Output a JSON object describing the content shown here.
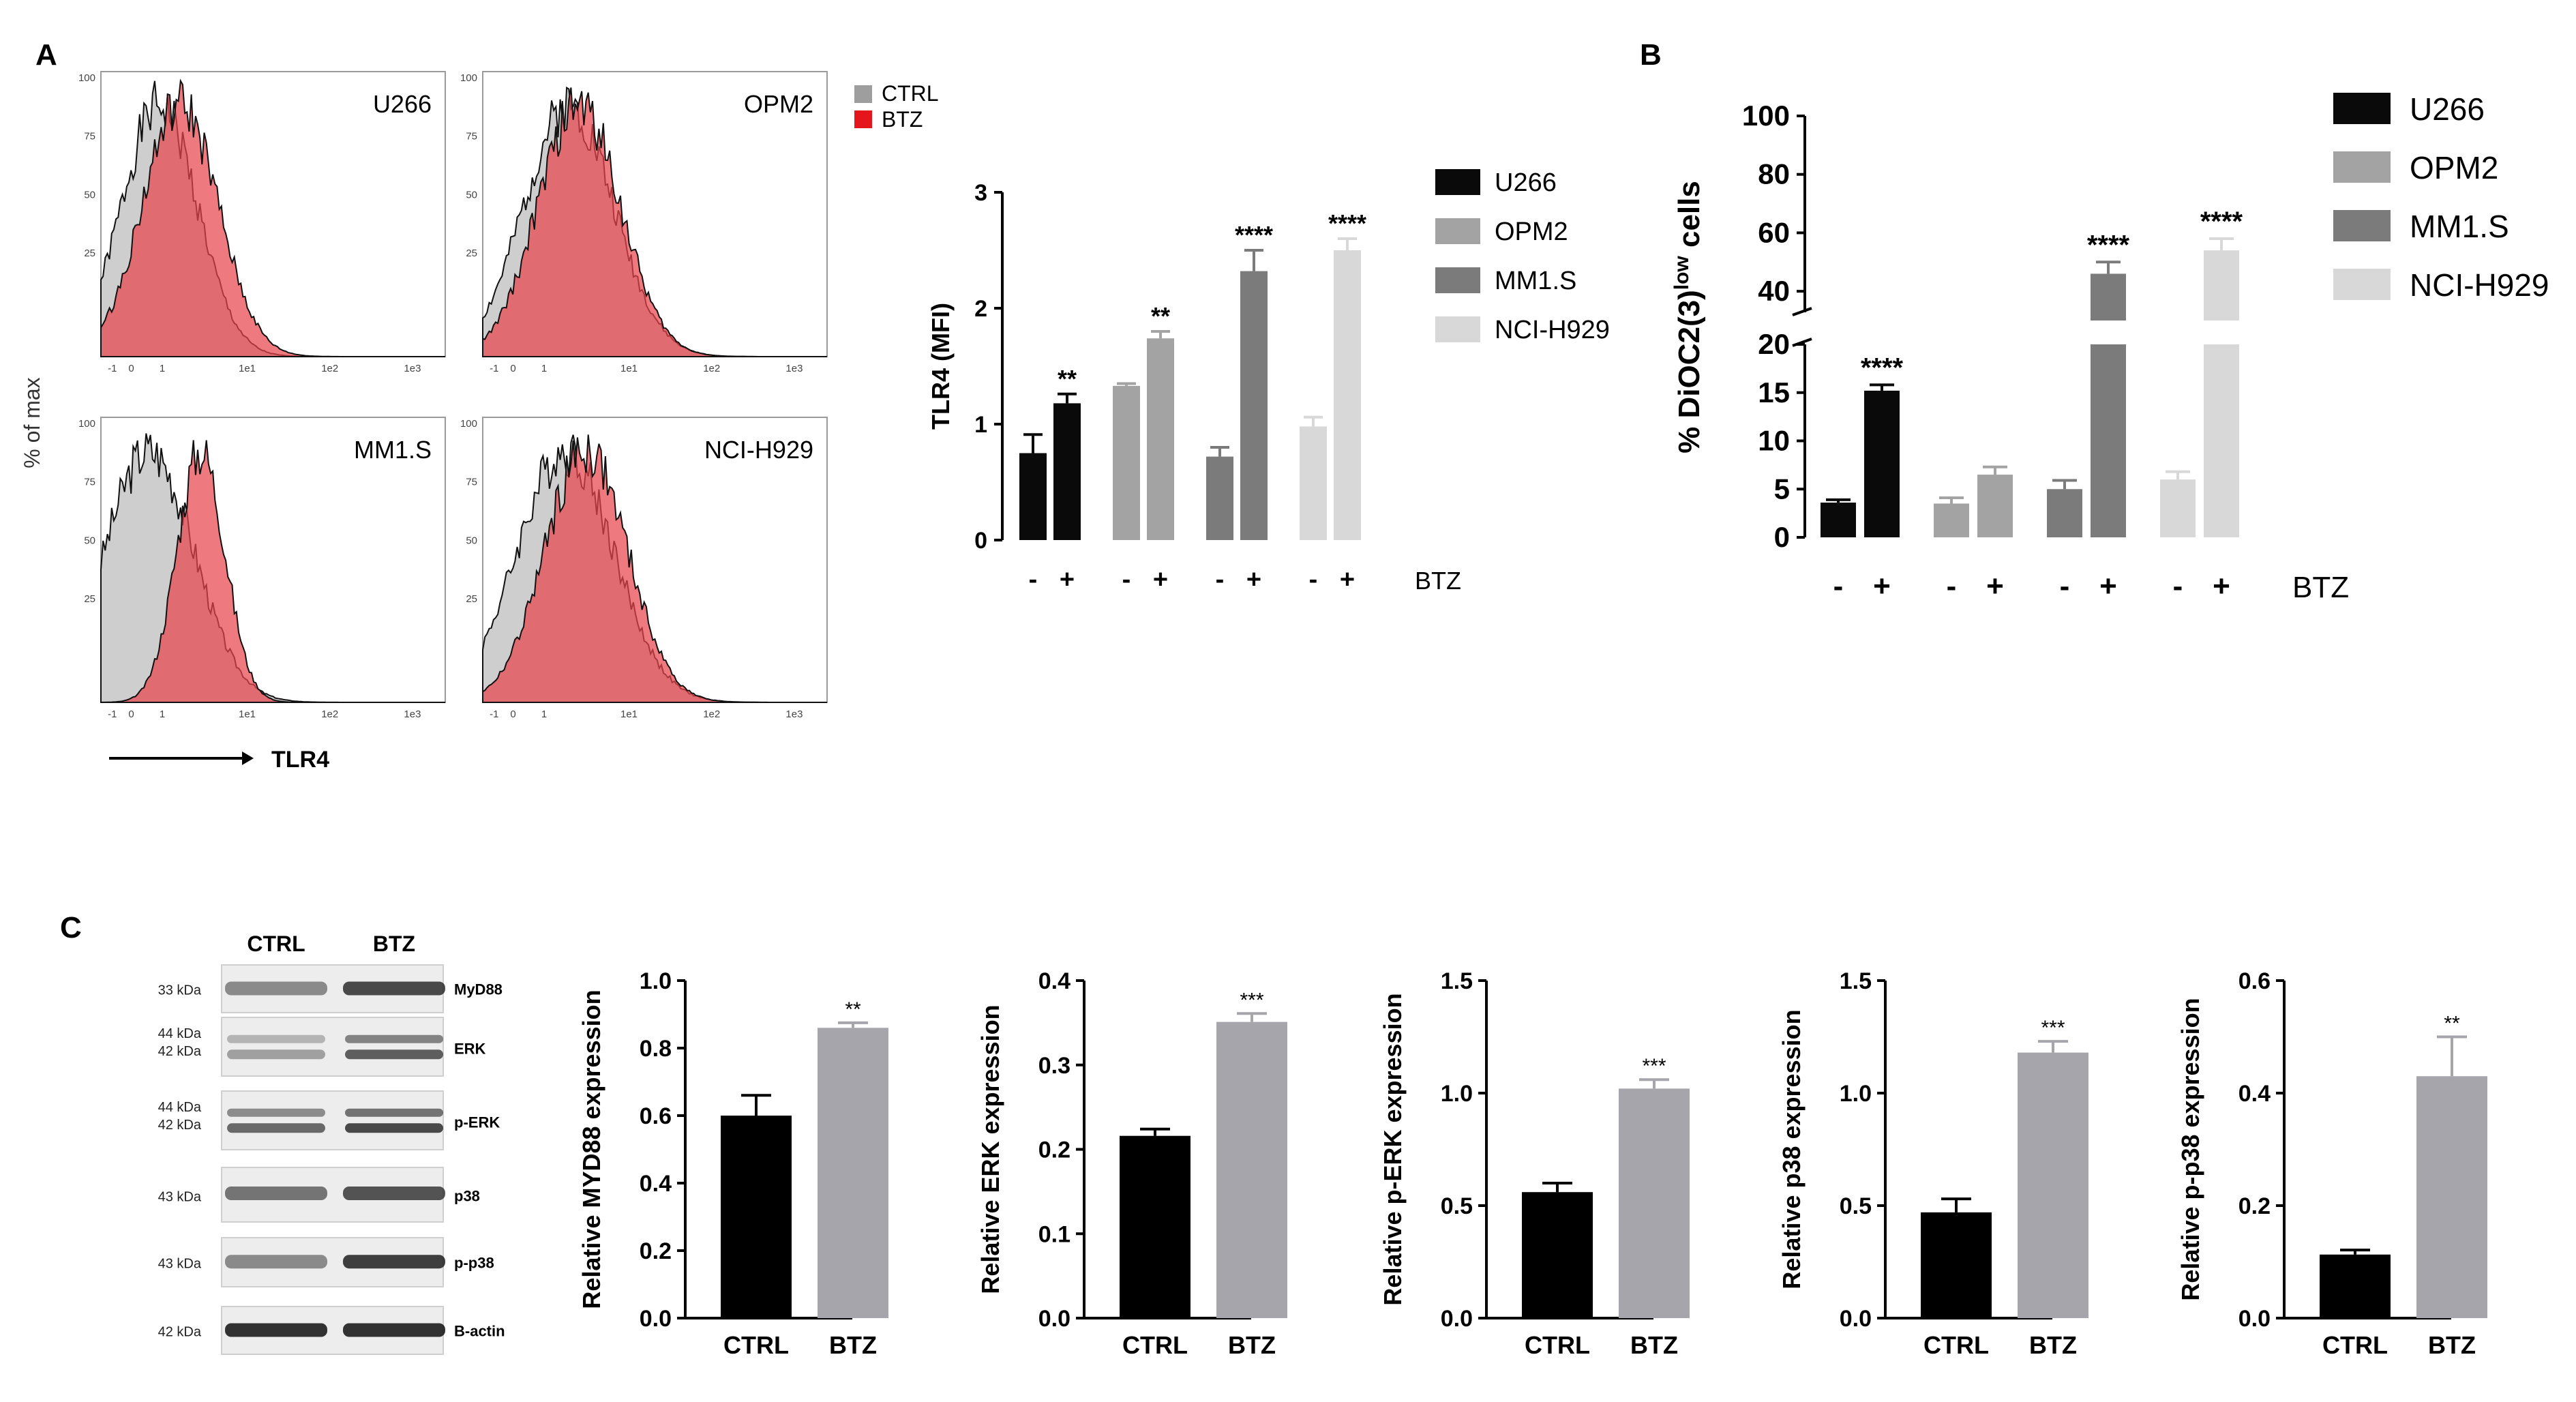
{
  "panel_labels": {
    "a": "A",
    "b": "B",
    "c": "C"
  },
  "histograms": {
    "ylabel": "% of max",
    "xlabel": "TLR4",
    "yticks": [
      "100",
      "75",
      "50",
      "25"
    ],
    "xticks": [
      "-1",
      "0",
      "1",
      "1e1",
      "1e2",
      "1e3"
    ],
    "legend": [
      {
        "label": "CTRL",
        "color": "#9e9e9e"
      },
      {
        "label": "BTZ",
        "color": "#e4161b"
      }
    ],
    "panels": [
      {
        "cell_line": "U266"
      },
      {
        "cell_line": "OPM2"
      },
      {
        "cell_line": "MM1.S"
      },
      {
        "cell_line": "NCI-H929"
      }
    ]
  },
  "colors": {
    "U266": "#0a0a0a",
    "OPM2": "#a3a3a3",
    "MM1.S": "#7b7b7b",
    "NCI-H929": "#d8d8d8",
    "CTRL": "#000000",
    "BTZ": "#a5a5ab",
    "hist_ctrl": "#bdbdbd",
    "hist_btz": "#e8474e"
  },
  "chart_data": [
    {
      "id": "tlr4_mfi",
      "type": "bar",
      "title": "",
      "ylabel": "TLR4 (MFI)",
      "xlabel": "BTZ",
      "ylim": [
        0,
        3
      ],
      "yticks": [
        "0",
        "1",
        "2",
        "3"
      ],
      "treatment_labels": [
        "-",
        "+"
      ],
      "series": [
        {
          "name": "U266",
          "values": [
            0.75,
            1.18
          ],
          "errors": [
            0.16,
            0.08
          ],
          "sig": "**"
        },
        {
          "name": "OPM2",
          "values": [
            1.33,
            1.74
          ],
          "errors": [
            0.02,
            0.06
          ],
          "sig": "**"
        },
        {
          "name": "MM1.S",
          "values": [
            0.72,
            2.32
          ],
          "errors": [
            0.08,
            0.18
          ],
          "sig": "****"
        },
        {
          "name": "NCI-H929",
          "values": [
            0.98,
            2.5
          ],
          "errors": [
            0.08,
            0.1
          ],
          "sig": "****"
        }
      ]
    },
    {
      "id": "dioc2",
      "type": "bar",
      "title": "",
      "ylabel": "% DiOC2(3)",
      "ylabel_sup": "low",
      "ylabel_tail": " cells",
      "xlabel": "BTZ",
      "broken_axis": {
        "lower": [
          0,
          20
        ],
        "upper": [
          30,
          100
        ]
      },
      "yticks": [
        "0",
        "5",
        "10",
        "15",
        "20",
        "40",
        "60",
        "80",
        "100"
      ],
      "treatment_labels": [
        "-",
        "+"
      ],
      "series": [
        {
          "name": "U266",
          "values": [
            3.6,
            15.2
          ],
          "errors": [
            0.3,
            0.6
          ],
          "sig": "****"
        },
        {
          "name": "OPM2",
          "values": [
            3.5,
            6.5
          ],
          "errors": [
            0.6,
            0.8
          ],
          "sig": ""
        },
        {
          "name": "MM1.S",
          "values": [
            5.0,
            46
          ],
          "errors": [
            0.9,
            4
          ],
          "sig": "****"
        },
        {
          "name": "NCI-H929",
          "values": [
            6.0,
            54
          ],
          "errors": [
            0.8,
            4
          ],
          "sig": "****"
        }
      ]
    },
    {
      "id": "myd88",
      "type": "bar",
      "categories": [
        "CTRL",
        "BTZ"
      ],
      "values": [
        0.6,
        0.86
      ],
      "errors": [
        0.06,
        0.015
      ],
      "sig": "**",
      "ylabel": "Relative MYD88 expression",
      "ylim": [
        0,
        1.0
      ],
      "yticks": [
        "0.0",
        "0.2",
        "0.4",
        "0.6",
        "0.8",
        "1.0"
      ]
    },
    {
      "id": "erk",
      "type": "bar",
      "categories": [
        "CTRL",
        "BTZ"
      ],
      "values": [
        0.216,
        0.351
      ],
      "errors": [
        0.008,
        0.01
      ],
      "sig": "***",
      "ylabel": "Relative ERK expression",
      "ylim": [
        0,
        0.4
      ],
      "yticks": [
        "0.0",
        "0.1",
        "0.2",
        "0.3",
        "0.4"
      ]
    },
    {
      "id": "perk",
      "type": "bar",
      "categories": [
        "CTRL",
        "BTZ"
      ],
      "values": [
        0.56,
        1.02
      ],
      "errors": [
        0.04,
        0.04
      ],
      "sig": "***",
      "ylabel": "Relative p-ERK expression",
      "ylim": [
        0,
        1.5
      ],
      "yticks": [
        "0.0",
        "0.5",
        "1.0",
        "1.5"
      ]
    },
    {
      "id": "p38",
      "type": "bar",
      "categories": [
        "CTRL",
        "BTZ"
      ],
      "values": [
        0.47,
        1.18
      ],
      "errors": [
        0.06,
        0.05
      ],
      "sig": "***",
      "ylabel": "Relative p38 expression",
      "ylim": [
        0,
        1.5
      ],
      "yticks": [
        "0.0",
        "0.5",
        "1.0",
        "1.5"
      ]
    },
    {
      "id": "pp38",
      "type": "bar",
      "categories": [
        "CTRL",
        "BTZ"
      ],
      "values": [
        0.113,
        0.43
      ],
      "errors": [
        0.008,
        0.07
      ],
      "sig": "**",
      "ylabel": "Relative p-p38 expression",
      "ylim": [
        0,
        0.6
      ],
      "yticks": [
        "0.0",
        "0.2",
        "0.4",
        "0.6"
      ]
    }
  ],
  "western_blot": {
    "headers": [
      "CTRL",
      "BTZ"
    ],
    "rows": [
      {
        "kda": [
          "33 kDa"
        ],
        "protein": "MyD88"
      },
      {
        "kda": [
          "44 kDa",
          "42 kDa"
        ],
        "protein": "ERK"
      },
      {
        "kda": [
          "44 kDa",
          "42 kDa"
        ],
        "protein": "p-ERK"
      },
      {
        "kda": [
          "43 kDa"
        ],
        "protein": "p38"
      },
      {
        "kda": [
          "43 kDa"
        ],
        "protein": "p-p38"
      },
      {
        "kda": [
          "42 kDa"
        ],
        "protein": "B-actin"
      }
    ]
  }
}
